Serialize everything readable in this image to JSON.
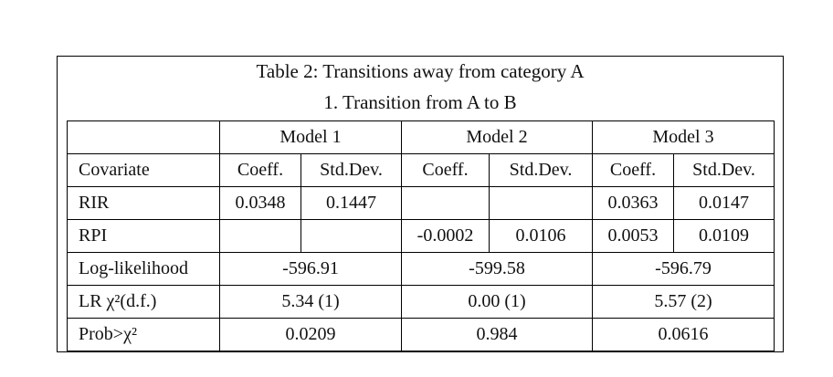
{
  "table": {
    "title": "Table 2: Transitions away from category A",
    "subtitle": "1. Transition from A to B",
    "models": [
      "Model 1",
      "Model 2",
      "Model 3"
    ],
    "covariate_header": "Covariate",
    "column_headers": [
      "Coeff.",
      "Std.Dev.",
      "Coeff.",
      "Std.Dev.",
      "Coeff.",
      "Std.Dev."
    ],
    "rows": [
      {
        "label": "RIR",
        "cells": [
          "0.0348",
          "0.1447",
          null,
          null,
          "0.0363",
          "0.0147"
        ]
      },
      {
        "label": "RPI",
        "cells": [
          null,
          null,
          "-0.0002",
          "0.0106",
          "0.0053",
          "0.0109"
        ]
      }
    ],
    "summary_rows": [
      {
        "label": "Log-likelihood",
        "cells": [
          "-596.91",
          "-599.58",
          "-596.79"
        ]
      },
      {
        "label": "LR χ²(d.f.)",
        "cells": [
          "5.34 (1)",
          "0.00 (1)",
          "5.57 (2)"
        ]
      },
      {
        "label": "Prob>χ²",
        "cells": [
          "0.0209",
          "0.984",
          "0.0616"
        ]
      }
    ]
  }
}
